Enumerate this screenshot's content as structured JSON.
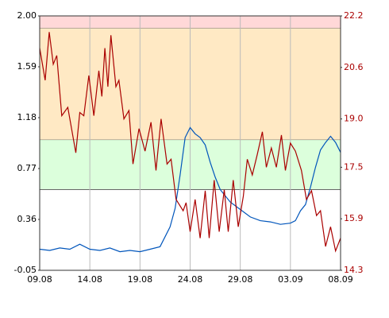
{
  "chart_data": {
    "type": "line",
    "xlim": [
      0,
      30
    ],
    "xticks": [
      {
        "value": 0,
        "label": "09.08"
      },
      {
        "value": 5,
        "label": "14.08"
      },
      {
        "value": 10,
        "label": "19.08"
      },
      {
        "value": 15,
        "label": "24.08"
      },
      {
        "value": 20,
        "label": "29.08"
      },
      {
        "value": 25,
        "label": "03.09"
      },
      {
        "value": 30,
        "label": "08.09"
      }
    ],
    "ylim": [
      -0.05,
      2
    ],
    "yticks": [
      -0.05,
      0.36,
      0.77,
      1.18,
      1.59,
      {
        "value": 2,
        "label": "2.00"
      }
    ],
    "y2lim": [
      14.3,
      22.2
    ],
    "y2ticks": [
      14.3,
      15.9,
      17.5,
      {
        "value": 19,
        "label": "19.0"
      },
      20.6,
      22.2
    ],
    "grid": true,
    "bands": [
      {
        "from": 1.9,
        "to": 2,
        "color": "#ffd8d8"
      },
      {
        "from": 1.0,
        "to": 1.9,
        "color": "#ffe9c4"
      },
      {
        "from": 0.6,
        "to": 1.0,
        "color": "#dcffdc"
      }
    ],
    "series": [
      {
        "color": "#0055bb",
        "x": [
          0,
          1,
          2,
          3,
          4,
          5,
          6,
          7,
          8,
          9,
          10,
          11,
          12,
          13,
          13.5,
          14,
          14.5,
          15,
          15.5,
          16,
          16.5,
          17,
          17.5,
          18,
          19,
          20,
          21,
          22,
          23,
          24,
          25,
          25.5,
          26,
          26.5,
          27,
          27.5,
          28,
          28.5,
          29,
          29.5,
          30
        ],
        "values": [
          0.12,
          0.11,
          0.13,
          0.12,
          0.16,
          0.12,
          0.11,
          0.13,
          0.1,
          0.11,
          0.1,
          0.12,
          0.14,
          0.3,
          0.45,
          0.72,
          1.02,
          1.1,
          1.05,
          1.02,
          0.96,
          0.82,
          0.7,
          0.6,
          0.5,
          0.44,
          0.38,
          0.35,
          0.34,
          0.32,
          0.33,
          0.35,
          0.43,
          0.48,
          0.62,
          0.78,
          0.92,
          0.98,
          1.03,
          0.98,
          0.9
        ]
      },
      {
        "color": "#aa0000",
        "axis": "y2",
        "x": [
          0,
          0.55,
          0.95,
          1.35,
          1.7,
          2.2,
          2.8,
          3.6,
          4.0,
          4.4,
          4.9,
          5.4,
          5.9,
          6.2,
          6.5,
          6.8,
          7.1,
          7.6,
          7.9,
          8.4,
          8.9,
          9.3,
          9.9,
          10.5,
          11.1,
          11.6,
          12.1,
          12.7,
          13.1,
          13.6,
          14.3,
          14.6,
          15.0,
          15.5,
          16.0,
          16.5,
          16.9,
          17.4,
          17.9,
          18.4,
          18.8,
          19.3,
          19.8,
          20.3,
          20.7,
          21.2,
          21.7,
          22.2,
          22.6,
          23.1,
          23.6,
          24.1,
          24.5,
          25.0,
          25.5,
          26.1,
          26.6,
          27.1,
          27.6,
          28.0,
          28.5,
          29.0,
          29.5,
          30.0
        ],
        "values": [
          21.2,
          20.2,
          21.7,
          20.7,
          20.97,
          19.1,
          19.36,
          17.95,
          19.2,
          19.1,
          20.35,
          19.1,
          20.5,
          19.7,
          21.2,
          20.0,
          21.6,
          20.0,
          20.2,
          19.0,
          19.26,
          17.6,
          18.7,
          18.0,
          18.9,
          17.4,
          19.0,
          17.6,
          17.75,
          16.5,
          16.15,
          16.4,
          15.5,
          16.5,
          15.3,
          16.77,
          15.3,
          17.1,
          15.5,
          16.8,
          15.5,
          17.1,
          15.65,
          16.6,
          17.75,
          17.26,
          17.9,
          18.6,
          17.5,
          18.1,
          17.5,
          18.5,
          17.4,
          18.25,
          18.0,
          17.4,
          16.5,
          16.77,
          16.0,
          16.15,
          15.04,
          15.65,
          14.9,
          15.3
        ]
      }
    ]
  }
}
